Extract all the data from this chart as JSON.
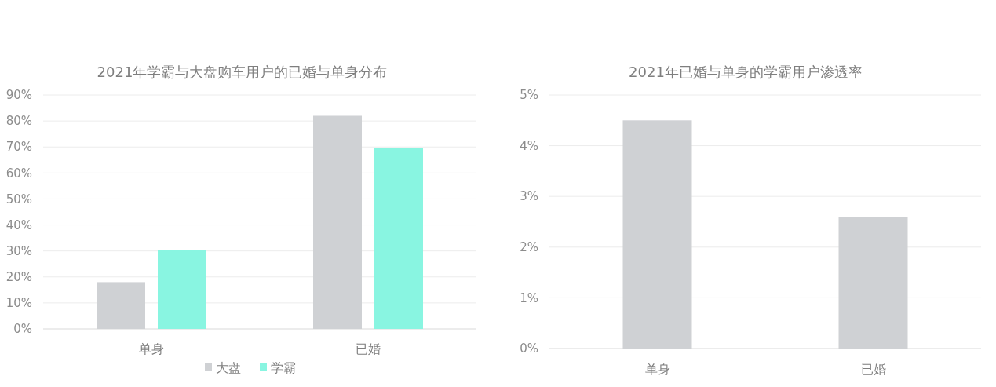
{
  "chart_data": [
    {
      "type": "bar",
      "title": "2021年学霸与大盘购车用户的已婚与单身分布",
      "categories": [
        "单身",
        "已婚"
      ],
      "series": [
        {
          "name": "大盘",
          "color": "#cfd1d4",
          "values": [
            18,
            82
          ]
        },
        {
          "name": "学霸",
          "color": "#89f5e1",
          "values": [
            30.5,
            69.5
          ]
        }
      ],
      "ylim": [
        0,
        90
      ],
      "yticks": [
        {
          "value": 0,
          "label": "0%"
        },
        {
          "value": 10,
          "label": "10%"
        },
        {
          "value": 20,
          "label": "20%"
        },
        {
          "value": 30,
          "label": "30%"
        },
        {
          "value": 40,
          "label": "40%"
        },
        {
          "value": 50,
          "label": "50%"
        },
        {
          "value": 60,
          "label": "60%"
        },
        {
          "value": 70,
          "label": "70%"
        },
        {
          "value": 80,
          "label": "80%"
        },
        {
          "value": 90,
          "label": "90%"
        }
      ],
      "grid": "y",
      "legend": "bottom"
    },
    {
      "type": "bar",
      "title": "2021年已婚与单身的学霸用户渗透率",
      "categories": [
        "单身",
        "已婚"
      ],
      "series": [
        {
          "color": "#cfd1d4",
          "values": [
            4.5,
            2.6
          ]
        }
      ],
      "ylim": [
        0,
        5
      ],
      "yticks": [
        {
          "value": 0,
          "label": "0%"
        },
        {
          "value": 1,
          "label": "1%"
        },
        {
          "value": 2,
          "label": "2%"
        },
        {
          "value": 3,
          "label": "3%"
        },
        {
          "value": 4,
          "label": "4%"
        },
        {
          "value": 5,
          "label": "5%"
        }
      ],
      "grid": "y"
    }
  ]
}
